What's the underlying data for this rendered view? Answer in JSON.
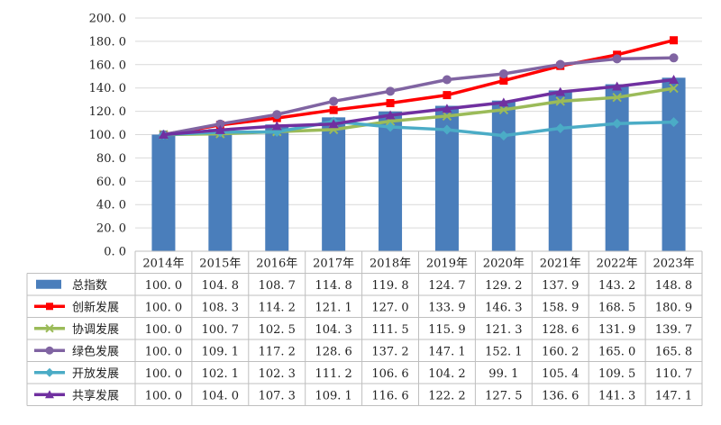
{
  "chart_data": {
    "type": "bar+line",
    "categories": [
      "2014年",
      "2015年",
      "2016年",
      "2017年",
      "2018年",
      "2019年",
      "2020年",
      "2021年",
      "2022年",
      "2023年"
    ],
    "ylim": [
      0,
      200
    ],
    "yticks": [
      "0. 0",
      "20. 0",
      "40. 0",
      "60. 0",
      "80. 0",
      "100. 0",
      "120. 0",
      "140. 0",
      "160. 0",
      "180. 0",
      "200. 0"
    ],
    "legend_placement": "data-table-left",
    "series": [
      {
        "name": "总指数",
        "type": "bar",
        "color": "#4a7ebb",
        "values": [
          100.0,
          104.8,
          108.7,
          114.8,
          119.8,
          124.7,
          129.2,
          137.9,
          143.2,
          148.8
        ],
        "labels": [
          "100. 0",
          "104. 8",
          "108. 7",
          "114. 8",
          "119. 8",
          "124. 7",
          "129. 2",
          "137. 9",
          "143. 2",
          "148. 8"
        ],
        "marker": "bar"
      },
      {
        "name": "创新发展",
        "type": "line",
        "color": "#ff0000",
        "values": [
          100.0,
          108.3,
          114.2,
          121.1,
          127.0,
          133.9,
          146.3,
          158.9,
          168.5,
          180.9
        ],
        "labels": [
          "100. 0",
          "108. 3",
          "114. 2",
          "121. 1",
          "127. 0",
          "133. 9",
          "146. 3",
          "158. 9",
          "168. 5",
          "180. 9"
        ],
        "marker": "square"
      },
      {
        "name": "协调发展",
        "type": "line",
        "color": "#9bbb59",
        "values": [
          100.0,
          100.7,
          102.5,
          104.3,
          111.5,
          115.9,
          121.3,
          128.6,
          131.9,
          139.7
        ],
        "labels": [
          "100. 0",
          "100. 7",
          "102. 5",
          "104. 3",
          "111. 5",
          "115. 9",
          "121. 3",
          "128. 6",
          "131. 9",
          "139. 7"
        ],
        "marker": "x"
      },
      {
        "name": "绿色发展",
        "type": "line",
        "color": "#8064a2",
        "values": [
          100.0,
          109.1,
          117.2,
          128.6,
          137.2,
          147.1,
          152.1,
          160.2,
          165.0,
          165.8
        ],
        "labels": [
          "100. 0",
          "109. 1",
          "117. 2",
          "128. 6",
          "137. 2",
          "147. 1",
          "152. 1",
          "160. 2",
          "165. 0",
          "165. 8"
        ],
        "marker": "circle"
      },
      {
        "name": "开放发展",
        "type": "line",
        "color": "#4bacc6",
        "values": [
          100.0,
          102.1,
          102.3,
          111.2,
          106.6,
          104.2,
          99.1,
          105.4,
          109.5,
          110.7
        ],
        "labels": [
          "100. 0",
          "102. 1",
          "102. 3",
          "111. 2",
          "106. 6",
          "104. 2",
          "99. 1",
          "105. 4",
          "109. 5",
          "110. 7"
        ],
        "marker": "diamond"
      },
      {
        "name": "共享发展",
        "type": "line",
        "color": "#7030a0",
        "values": [
          100.0,
          104.0,
          107.3,
          109.1,
          116.6,
          122.2,
          127.5,
          136.6,
          141.3,
          147.1
        ],
        "labels": [
          "100. 0",
          "104. 0",
          "107. 3",
          "109. 1",
          "116. 6",
          "122. 2",
          "127. 5",
          "136. 6",
          "141. 3",
          "147. 1"
        ],
        "marker": "triangle"
      }
    ],
    "grid": true
  }
}
